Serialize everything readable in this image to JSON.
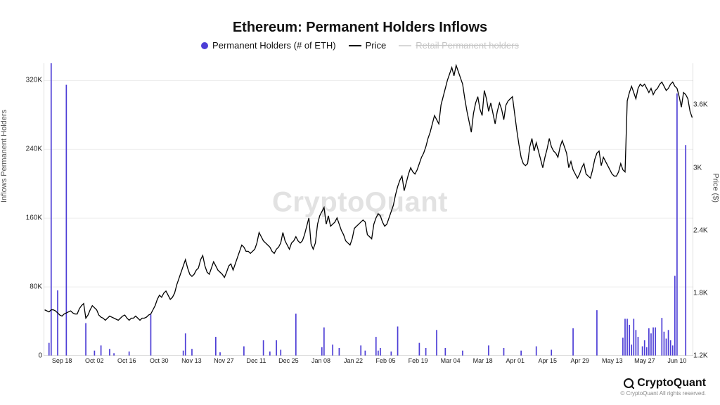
{
  "chart": {
    "type": "combo-bar-line",
    "title": "Ethereum: Permanent Holders Inflows",
    "title_fontsize": 20,
    "background_color": "#ffffff",
    "watermark": "CryptoQuant",
    "watermark_color": "#e2e2e2",
    "legend": {
      "items": [
        {
          "label": "Permanent Holders (# of ETH)",
          "kind": "dot",
          "color": "#4c3dd6",
          "disabled": false
        },
        {
          "label": "Price",
          "kind": "line",
          "color": "#000000",
          "disabled": false
        },
        {
          "label": "Retail Permanent holders",
          "kind": "line",
          "color": "#bdbdbd",
          "disabled": true
        }
      ]
    },
    "y_left": {
      "label": "Inflows Permanent Holders",
      "min": 0,
      "max": 340000,
      "ticks": [
        {
          "v": 0,
          "label": "0"
        },
        {
          "v": 80000,
          "label": "80K"
        },
        {
          "v": 160000,
          "label": "160K"
        },
        {
          "v": 240000,
          "label": "240K"
        },
        {
          "v": 320000,
          "label": "320K"
        }
      ]
    },
    "y_right": {
      "label": "Price ($)",
      "min": 1200,
      "max": 4000,
      "ticks": [
        {
          "v": 1200,
          "label": "1.2K"
        },
        {
          "v": 1800,
          "label": "1.8K"
        },
        {
          "v": 2400,
          "label": "2.4K"
        },
        {
          "v": 3000,
          "label": "3K"
        },
        {
          "v": 3600,
          "label": "3.6K"
        }
      ]
    },
    "x": {
      "dates": [
        "Sep 18",
        "Oct 02",
        "Oct 16",
        "Oct 30",
        "Nov 13",
        "Nov 27",
        "Dec 11",
        "Dec 25",
        "Jan 08",
        "Jan 22",
        "Feb 05",
        "Feb 19",
        "Mar 04",
        "Mar 18",
        "Apr 01",
        "Apr 15",
        "Apr 29",
        "May 13",
        "May 27",
        "Jun 10"
      ],
      "n_points": 300
    },
    "bars": {
      "color": "#4c3dd6",
      "width_frac": 0.55,
      "values": [
        0,
        0,
        15000,
        340000,
        0,
        0,
        76000,
        0,
        0,
        0,
        315000,
        0,
        0,
        0,
        0,
        0,
        0,
        0,
        0,
        38000,
        0,
        0,
        0,
        6000,
        0,
        0,
        12000,
        0,
        0,
        0,
        8000,
        0,
        3000,
        0,
        0,
        0,
        0,
        0,
        0,
        5000,
        0,
        0,
        0,
        0,
        0,
        0,
        0,
        0,
        0,
        48000,
        0,
        0,
        0,
        0,
        0,
        0,
        0,
        0,
        0,
        0,
        0,
        0,
        0,
        0,
        6000,
        26000,
        0,
        0,
        8000,
        0,
        0,
        0,
        0,
        0,
        0,
        0,
        0,
        0,
        0,
        22000,
        0,
        4000,
        0,
        0,
        0,
        0,
        0,
        0,
        0,
        0,
        0,
        0,
        11000,
        0,
        0,
        0,
        0,
        0,
        0,
        0,
        0,
        18000,
        0,
        0,
        5000,
        0,
        0,
        18000,
        0,
        7000,
        0,
        0,
        0,
        0,
        0,
        0,
        49000,
        0,
        0,
        0,
        0,
        0,
        0,
        0,
        0,
        0,
        0,
        0,
        10000,
        33000,
        0,
        0,
        0,
        13000,
        0,
        0,
        9000,
        0,
        0,
        0,
        0,
        0,
        0,
        0,
        0,
        0,
        12000,
        0,
        6000,
        0,
        0,
        0,
        0,
        22000,
        6000,
        9000,
        0,
        0,
        0,
        0,
        5000,
        0,
        0,
        34000,
        0,
        0,
        0,
        0,
        0,
        0,
        0,
        0,
        0,
        15000,
        0,
        0,
        9000,
        0,
        0,
        0,
        0,
        30000,
        0,
        0,
        0,
        9000,
        0,
        0,
        0,
        0,
        0,
        0,
        0,
        6000,
        0,
        0,
        0,
        0,
        0,
        0,
        0,
        0,
        0,
        0,
        0,
        12000,
        0,
        0,
        0,
        0,
        0,
        0,
        9000,
        0,
        0,
        0,
        0,
        0,
        0,
        0,
        6000,
        0,
        0,
        0,
        0,
        0,
        0,
        11000,
        0,
        0,
        0,
        0,
        0,
        0,
        7000,
        0,
        0,
        0,
        0,
        0,
        0,
        0,
        0,
        0,
        32000,
        0,
        0,
        0,
        0,
        0,
        0,
        0,
        0,
        0,
        0,
        53000,
        0,
        0,
        0,
        0,
        0,
        0,
        0,
        0,
        0,
        0,
        0,
        21000,
        43000,
        43000,
        36000,
        13000,
        43000,
        30000,
        22000,
        0,
        11000,
        18000,
        10000,
        32000,
        26000,
        33000,
        33000,
        0,
        0,
        44000,
        28000,
        20000,
        30000,
        18000,
        12000,
        93000,
        305000,
        0,
        0,
        0,
        245000
      ]
    },
    "line": {
      "color": "#000000",
      "width": 1.3,
      "values": [
        1640,
        1630,
        1620,
        1640,
        1640,
        1630,
        1610,
        1590,
        1580,
        1600,
        1610,
        1620,
        1630,
        1610,
        1600,
        1600,
        1650,
        1680,
        1700,
        1560,
        1590,
        1640,
        1680,
        1660,
        1640,
        1590,
        1570,
        1560,
        1540,
        1560,
        1580,
        1570,
        1560,
        1550,
        1540,
        1560,
        1580,
        1590,
        1560,
        1540,
        1560,
        1560,
        1580,
        1560,
        1540,
        1560,
        1560,
        1570,
        1590,
        1600,
        1640,
        1680,
        1740,
        1780,
        1760,
        1800,
        1820,
        1780,
        1740,
        1760,
        1800,
        1880,
        1940,
        2000,
        2060,
        2120,
        2040,
        1980,
        1960,
        1980,
        2020,
        2040,
        2120,
        2160,
        2060,
        2000,
        1980,
        2040,
        2100,
        2060,
        2020,
        2000,
        1980,
        1950,
        2000,
        2060,
        2080,
        2020,
        2080,
        2140,
        2200,
        2260,
        2240,
        2200,
        2200,
        2180,
        2200,
        2220,
        2280,
        2380,
        2340,
        2300,
        2280,
        2260,
        2240,
        2200,
        2180,
        2220,
        2240,
        2280,
        2380,
        2300,
        2260,
        2220,
        2280,
        2300,
        2340,
        2300,
        2280,
        2300,
        2360,
        2440,
        2520,
        2270,
        2220,
        2280,
        2460,
        2540,
        2580,
        2620,
        2460,
        2540,
        2440,
        2460,
        2480,
        2520,
        2460,
        2400,
        2360,
        2300,
        2280,
        2260,
        2320,
        2420,
        2440,
        2460,
        2480,
        2500,
        2480,
        2360,
        2340,
        2320,
        2460,
        2520,
        2560,
        2540,
        2480,
        2440,
        2460,
        2520,
        2580,
        2640,
        2740,
        2820,
        2880,
        2920,
        2780,
        2860,
        2940,
        3000,
        2960,
        2940,
        2980,
        3040,
        3100,
        3140,
        3200,
        3280,
        3340,
        3420,
        3500,
        3460,
        3420,
        3600,
        3680,
        3760,
        3840,
        3900,
        3960,
        3880,
        3980,
        3920,
        3860,
        3800,
        3660,
        3540,
        3440,
        3340,
        3520,
        3620,
        3680,
        3560,
        3500,
        3740,
        3660,
        3540,
        3620,
        3520,
        3420,
        3540,
        3620,
        3560,
        3460,
        3600,
        3640,
        3660,
        3680,
        3520,
        3360,
        3220,
        3100,
        3040,
        3020,
        3040,
        3200,
        3280,
        3160,
        3240,
        3160,
        3080,
        3000,
        3100,
        3180,
        3280,
        3200,
        3160,
        3140,
        3100,
        3200,
        3260,
        3200,
        3140,
        3000,
        3060,
        2980,
        2940,
        2900,
        2940,
        3000,
        3040,
        2940,
        2920,
        2900,
        2980,
        3080,
        3140,
        3160,
        3020,
        3100,
        3060,
        3020,
        2980,
        2940,
        2920,
        2920,
        2960,
        3040,
        2980,
        2960,
        3640,
        3720,
        3780,
        3720,
        3660,
        3760,
        3800,
        3780,
        3800,
        3760,
        3720,
        3760,
        3700,
        3740,
        3760,
        3800,
        3820,
        3780,
        3740,
        3760,
        3800,
        3820,
        3780,
        3760,
        3680,
        3580,
        3720,
        3700,
        3660,
        3540,
        3480
      ]
    },
    "axis_color": "#bdbdbd",
    "grid_color": "#eeeeee"
  },
  "footer": {
    "brand_name": "CryptoQuant",
    "brand_fontsize": 16,
    "copyright": "© CryptoQuant All rights reserved."
  }
}
